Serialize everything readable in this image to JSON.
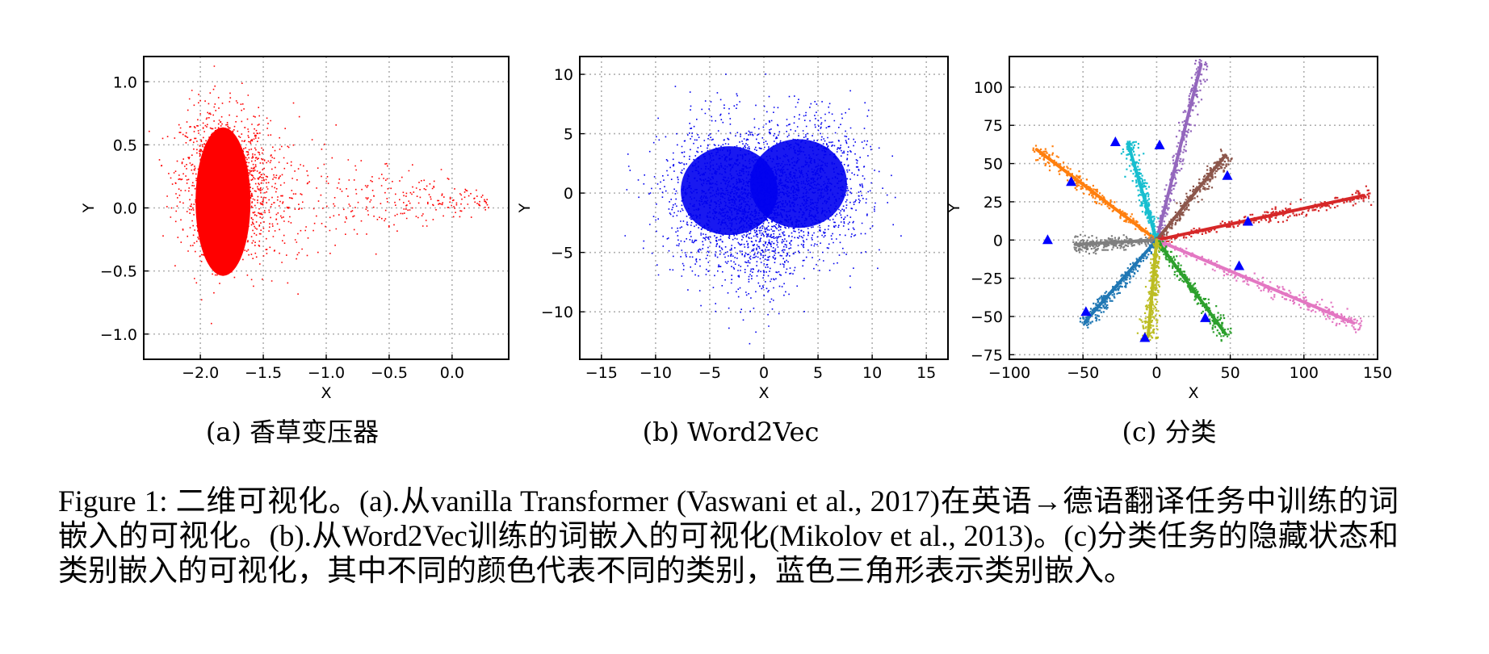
{
  "chart_data": [
    {
      "type": "scatter",
      "subtitle": "(a) 香草变压器",
      "xlabel": "X",
      "ylabel": "Y",
      "xlim": [
        -2.45,
        0.45
      ],
      "ylim": [
        -1.2,
        1.2
      ],
      "xticks": [
        -2.0,
        -1.5,
        -1.0,
        -0.5,
        0.0
      ],
      "xtick_labels": [
        "−2.0",
        "−1.5",
        "−1.0",
        "−0.5",
        "0.0"
      ],
      "yticks": [
        1.0,
        0.5,
        0.0,
        -0.5,
        -1.0
      ],
      "ytick_labels": [
        "1.0",
        "0.5",
        "0.0",
        "−0.5",
        "−1.0"
      ],
      "grid": true,
      "color": "#ff0000",
      "series": [
        {
          "distribution": "dense cluster",
          "center": [
            -1.82,
            0.2
          ],
          "spread": [
            0.17,
            0.28
          ],
          "count": 1400
        },
        {
          "distribution": "tail toward +x",
          "range_x": [
            -1.6,
            0.3
          ],
          "center_y": 0.1,
          "count": 450
        }
      ]
    },
    {
      "type": "scatter",
      "subtitle": "(b) Word2Vec",
      "xlabel": "X",
      "ylabel": "Y",
      "xlim": [
        -17,
        17
      ],
      "ylim": [
        -14,
        11.5
      ],
      "xticks": [
        -15,
        -10,
        -5,
        0,
        5,
        10,
        15
      ],
      "xtick_labels": [
        "−15",
        "−10",
        "−5",
        "0",
        "5",
        "10",
        "15"
      ],
      "yticks": [
        10,
        5,
        0,
        -5,
        -10
      ],
      "ytick_labels": [
        "10",
        "5",
        "0",
        "−5",
        "−10"
      ],
      "grid": true,
      "color": "#0000ee",
      "series": [
        {
          "distribution": "cluster",
          "center": [
            -3.5,
            -0.5
          ],
          "spread": [
            3.0,
            3.2
          ],
          "count": 1300
        },
        {
          "distribution": "cluster",
          "center": [
            3.5,
            0.5
          ],
          "spread": [
            3.0,
            3.0
          ],
          "count": 1300
        },
        {
          "distribution": "vertical lobe",
          "center": [
            0,
            -3.0
          ],
          "spread": [
            1.3,
            3.2
          ],
          "count": 400
        }
      ]
    },
    {
      "type": "scatter",
      "subtitle": "(c) 分类",
      "xlabel": "X",
      "ylabel": "Y",
      "xlim": [
        -100,
        150
      ],
      "ylim": [
        -78,
        120
      ],
      "xticks": [
        -100,
        -50,
        0,
        50,
        100,
        150
      ],
      "xtick_labels": [
        "−100",
        "−50",
        "0",
        "50",
        "100",
        "150"
      ],
      "yticks": [
        100,
        75,
        50,
        25,
        0,
        -25,
        -50,
        -75
      ],
      "ytick_labels": [
        "100",
        "75",
        "50",
        "25",
        "0",
        "−25",
        "−50",
        "−75"
      ],
      "grid": true,
      "rays": [
        {
          "color": "#9467bd",
          "end": [
            31,
            118
          ]
        },
        {
          "color": "#ff7f0e",
          "end": [
            -84,
            61
          ]
        },
        {
          "color": "#17becf",
          "end": [
            -20,
            65
          ]
        },
        {
          "color": "#8c564b",
          "end": [
            48,
            57
          ]
        },
        {
          "color": "#d62728",
          "end": [
            145,
            30
          ]
        },
        {
          "color": "#7f7f7f",
          "end": [
            -57,
            -3
          ]
        },
        {
          "color": "#e377c2",
          "end": [
            138,
            -56
          ]
        },
        {
          "color": "#2ca02c",
          "end": [
            48,
            -63
          ]
        },
        {
          "color": "#1f77b4",
          "end": [
            -50,
            -55
          ]
        },
        {
          "color": "#bcbd22",
          "end": [
            -6,
            -65
          ]
        }
      ],
      "class_embeddings": {
        "marker": "triangle",
        "color": "#0000ff",
        "points": [
          [
            -74,
            0
          ],
          [
            -58,
            38
          ],
          [
            -28,
            64
          ],
          [
            2,
            62
          ],
          [
            48,
            42
          ],
          [
            62,
            12
          ],
          [
            56,
            -17
          ],
          [
            33,
            -51
          ],
          [
            -48,
            -47
          ],
          [
            -8,
            -64
          ]
        ]
      }
    }
  ],
  "caption": "Figure 1: 二维可视化。(a).从vanilla Transformer (Vaswani et al., 2017)在英语→德语翻译任务中训练的词嵌入的可视化。(b).从Word2Vec训练的词嵌入的可视化(Mikolov et al., 2013)。(c)分类任务的隐藏状态和类别嵌入的可视化，其中不同的颜色代表不同的类别，蓝色三角形表示类别嵌入。"
}
